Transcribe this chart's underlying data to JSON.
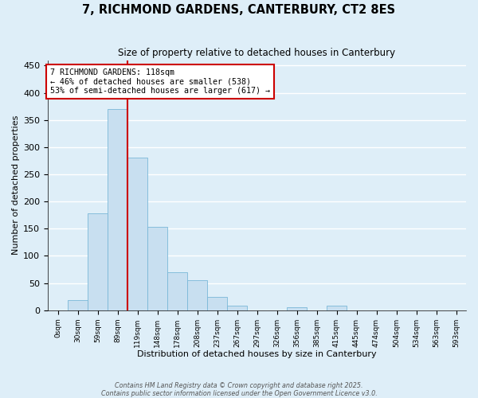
{
  "title": "7, RICHMOND GARDENS, CANTERBURY, CT2 8ES",
  "subtitle": "Size of property relative to detached houses in Canterbury",
  "xlabel": "Distribution of detached houses by size in Canterbury",
  "ylabel": "Number of detached properties",
  "bar_color": "#c8dff0",
  "bar_edge_color": "#7ab8d8",
  "background_color": "#deeef8",
  "grid_color": "#ffffff",
  "bin_labels": [
    "0sqm",
    "30sqm",
    "59sqm",
    "89sqm",
    "119sqm",
    "148sqm",
    "178sqm",
    "208sqm",
    "237sqm",
    "267sqm",
    "297sqm",
    "326sqm",
    "356sqm",
    "385sqm",
    "415sqm",
    "445sqm",
    "474sqm",
    "504sqm",
    "534sqm",
    "563sqm",
    "593sqm"
  ],
  "bar_values": [
    0,
    18,
    178,
    370,
    280,
    153,
    70,
    55,
    25,
    8,
    0,
    0,
    6,
    0,
    8,
    0,
    0,
    0,
    0,
    0,
    0
  ],
  "ylim": [
    0,
    460
  ],
  "yticks": [
    0,
    50,
    100,
    150,
    200,
    250,
    300,
    350,
    400,
    450
  ],
  "vline_x": 4,
  "marker_label": "7 RICHMOND GARDENS: 118sqm",
  "annotation_line1": "← 46% of detached houses are smaller (538)",
  "annotation_line2": "53% of semi-detached houses are larger (617) →",
  "vline_color": "#cc0000",
  "box_edge_color": "#cc0000",
  "footer1": "Contains HM Land Registry data © Crown copyright and database right 2025.",
  "footer2": "Contains public sector information licensed under the Open Government Licence v3.0.",
  "figsize": [
    6.0,
    5.0
  ],
  "dpi": 100
}
